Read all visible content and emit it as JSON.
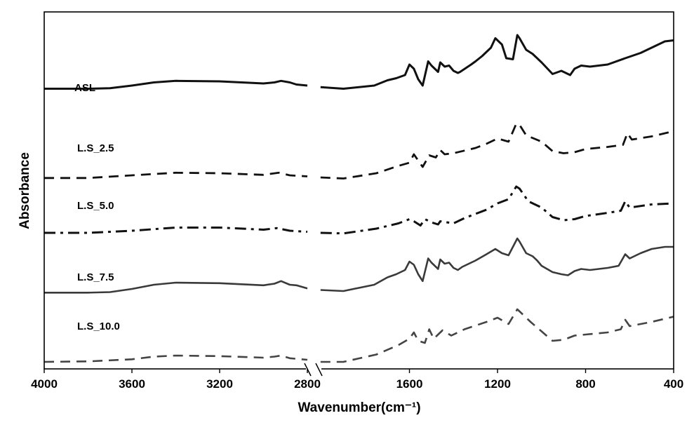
{
  "chart_data": {
    "type": "line",
    "title": "",
    "xlabel": "Wavenumber(cm⁻¹)",
    "ylabel": "Absorbance",
    "xlim": [
      4000,
      400
    ],
    "x_reversed": true,
    "axis_break_between": [
      2800,
      2000
    ],
    "xticks": [
      {
        "value": 4000,
        "label": "4000"
      },
      {
        "value": 3600,
        "label": "3600"
      },
      {
        "value": 3200,
        "label": "3200"
      },
      {
        "value": 2800,
        "label": "2800"
      },
      {
        "value": 1600,
        "label": "1600"
      },
      {
        "value": 1200,
        "label": "1200"
      },
      {
        "value": 800,
        "label": "800"
      },
      {
        "value": 400,
        "label": "400"
      }
    ],
    "grid": false,
    "y_units": "arbitrary",
    "series": [
      {
        "name": "ASL",
        "style": "solid",
        "width": 3,
        "color": "#111111",
        "segments": [
          [
            [
              4000,
              2.1
            ],
            [
              3800,
              2.1
            ],
            [
              3700,
              2.15
            ],
            [
              3600,
              2.4
            ],
            [
              3500,
              2.7
            ],
            [
              3400,
              2.85
            ],
            [
              3200,
              2.8
            ],
            [
              3000,
              2.6
            ],
            [
              2950,
              2.7
            ],
            [
              2920,
              2.85
            ],
            [
              2880,
              2.7
            ],
            [
              2850,
              2.5
            ],
            [
              2800,
              2.4
            ]
          ],
          [
            [
              2740,
              2.25
            ],
            [
              1900,
              2.1
            ],
            [
              1760,
              2.4
            ],
            [
              1700,
              2.9
            ],
            [
              1660,
              3.1
            ],
            [
              1620,
              3.4
            ],
            [
              1600,
              4.4
            ],
            [
              1580,
              4.0
            ],
            [
              1560,
              3.0
            ],
            [
              1540,
              2.4
            ],
            [
              1515,
              4.7
            ],
            [
              1500,
              4.3
            ],
            [
              1470,
              3.7
            ],
            [
              1460,
              4.6
            ],
            [
              1440,
              4.2
            ],
            [
              1420,
              4.3
            ],
            [
              1400,
              3.8
            ],
            [
              1380,
              3.6
            ],
            [
              1370,
              3.7
            ],
            [
              1320,
              4.4
            ],
            [
              1300,
              4.7
            ],
            [
              1270,
              5.2
            ],
            [
              1230,
              6.0
            ],
            [
              1210,
              6.9
            ],
            [
              1180,
              6.3
            ],
            [
              1160,
              5.0
            ],
            [
              1130,
              4.9
            ],
            [
              1110,
              7.2
            ],
            [
              1100,
              6.9
            ],
            [
              1070,
              5.8
            ],
            [
              1040,
              5.4
            ],
            [
              1030,
              5.2
            ],
            [
              1000,
              4.6
            ],
            [
              950,
              3.5
            ],
            [
              910,
              3.8
            ],
            [
              890,
              3.6
            ],
            [
              870,
              3.4
            ],
            [
              850,
              4.0
            ],
            [
              820,
              4.3
            ],
            [
              780,
              4.2
            ],
            [
              700,
              4.4
            ],
            [
              620,
              5.0
            ],
            [
              550,
              5.5
            ],
            [
              500,
              6.0
            ],
            [
              440,
              6.6
            ],
            [
              400,
              6.7
            ]
          ]
        ]
      },
      {
        "name": "L.S_2.5",
        "style": "dashed",
        "width": 2.8,
        "color": "#111111",
        "segments": [
          [
            [
              4000,
              0.15
            ],
            [
              3800,
              0.15
            ],
            [
              3600,
              0.4
            ],
            [
              3400,
              0.65
            ],
            [
              3200,
              0.6
            ],
            [
              3000,
              0.45
            ],
            [
              2930,
              0.65
            ],
            [
              2880,
              0.4
            ],
            [
              2800,
              0.3
            ]
          ],
          [
            [
              2740,
              0.2
            ],
            [
              1900,
              0.1
            ],
            [
              1750,
              0.6
            ],
            [
              1650,
              1.3
            ],
            [
              1600,
              1.6
            ],
            [
              1580,
              2.4
            ],
            [
              1560,
              1.8
            ],
            [
              1540,
              1.2
            ],
            [
              1510,
              2.3
            ],
            [
              1480,
              2.1
            ],
            [
              1460,
              2.8
            ],
            [
              1440,
              2.4
            ],
            [
              1400,
              2.5
            ],
            [
              1300,
              3.0
            ],
            [
              1250,
              3.4
            ],
            [
              1200,
              3.9
            ],
            [
              1150,
              3.6
            ],
            [
              1115,
              5.3
            ],
            [
              1100,
              5.2
            ],
            [
              1070,
              4.2
            ],
            [
              1000,
              3.6
            ],
            [
              950,
              2.7
            ],
            [
              900,
              2.5
            ],
            [
              850,
              2.6
            ],
            [
              800,
              2.9
            ],
            [
              700,
              3.1
            ],
            [
              630,
              3.3
            ],
            [
              610,
              4.4
            ],
            [
              590,
              3.8
            ],
            [
              500,
              4.1
            ],
            [
              400,
              4.6
            ]
          ]
        ]
      },
      {
        "name": "L.S_5.0",
        "style": "dashdot",
        "width": 3,
        "color": "#111111",
        "segments": [
          [
            [
              4000,
              0.8
            ],
            [
              3800,
              0.8
            ],
            [
              3600,
              1.0
            ],
            [
              3400,
              1.3
            ],
            [
              3200,
              1.3
            ],
            [
              3000,
              1.1
            ],
            [
              2940,
              1.25
            ],
            [
              2880,
              1.0
            ],
            [
              2800,
              0.9
            ]
          ],
          [
            [
              2740,
              0.8
            ],
            [
              1900,
              0.75
            ],
            [
              1750,
              1.2
            ],
            [
              1650,
              1.7
            ],
            [
              1600,
              2.1
            ],
            [
              1580,
              1.9
            ],
            [
              1550,
              1.5
            ],
            [
              1530,
              2.1
            ],
            [
              1500,
              1.8
            ],
            [
              1470,
              1.6
            ],
            [
              1460,
              1.9
            ],
            [
              1430,
              1.8
            ],
            [
              1400,
              1.7
            ],
            [
              1350,
              2.2
            ],
            [
              1250,
              3.0
            ],
            [
              1200,
              3.6
            ],
            [
              1150,
              4.0
            ],
            [
              1115,
              5.2
            ],
            [
              1100,
              5.0
            ],
            [
              1060,
              3.8
            ],
            [
              1000,
              3.2
            ],
            [
              950,
              2.3
            ],
            [
              900,
              2.0
            ],
            [
              850,
              2.1
            ],
            [
              800,
              2.4
            ],
            [
              700,
              2.7
            ],
            [
              640,
              2.9
            ],
            [
              620,
              3.8
            ],
            [
              600,
              3.2
            ],
            [
              500,
              3.5
            ],
            [
              400,
              3.6
            ]
          ]
        ]
      },
      {
        "name": "L.S_7.5",
        "style": "solid",
        "width": 2.6,
        "color": "#3a3a3a",
        "segments": [
          [
            [
              4000,
              0.85
            ],
            [
              3800,
              0.85
            ],
            [
              3700,
              0.9
            ],
            [
              3600,
              1.2
            ],
            [
              3500,
              1.6
            ],
            [
              3400,
              1.8
            ],
            [
              3200,
              1.75
            ],
            [
              3000,
              1.55
            ],
            [
              2950,
              1.7
            ],
            [
              2920,
              1.95
            ],
            [
              2880,
              1.6
            ],
            [
              2850,
              1.55
            ],
            [
              2800,
              1.25
            ]
          ],
          [
            [
              2740,
              1.1
            ],
            [
              1900,
              1.0
            ],
            [
              1760,
              1.6
            ],
            [
              1700,
              2.3
            ],
            [
              1660,
              2.6
            ],
            [
              1620,
              3.0
            ],
            [
              1600,
              3.8
            ],
            [
              1580,
              3.5
            ],
            [
              1560,
              2.6
            ],
            [
              1540,
              1.95
            ],
            [
              1515,
              4.1
            ],
            [
              1500,
              3.7
            ],
            [
              1470,
              3.1
            ],
            [
              1460,
              4.0
            ],
            [
              1440,
              3.6
            ],
            [
              1420,
              3.7
            ],
            [
              1400,
              3.2
            ],
            [
              1380,
              3.0
            ],
            [
              1360,
              3.3
            ],
            [
              1300,
              3.9
            ],
            [
              1250,
              4.5
            ],
            [
              1210,
              5.0
            ],
            [
              1180,
              4.6
            ],
            [
              1150,
              4.4
            ],
            [
              1110,
              6.0
            ],
            [
              1100,
              5.7
            ],
            [
              1070,
              4.6
            ],
            [
              1040,
              4.3
            ],
            [
              1020,
              3.9
            ],
            [
              1000,
              3.4
            ],
            [
              950,
              2.8
            ],
            [
              910,
              2.6
            ],
            [
              880,
              2.5
            ],
            [
              850,
              2.9
            ],
            [
              820,
              3.1
            ],
            [
              780,
              3.0
            ],
            [
              700,
              3.2
            ],
            [
              650,
              3.4
            ],
            [
              620,
              4.5
            ],
            [
              600,
              4.1
            ],
            [
              550,
              4.6
            ],
            [
              500,
              5.0
            ],
            [
              440,
              5.2
            ],
            [
              400,
              5.2
            ]
          ]
        ]
      },
      {
        "name": "L.S_10.0",
        "style": "dashed",
        "width": 2.6,
        "color": "#444444",
        "segments": [
          [
            [
              4000,
              0.0
            ],
            [
              3800,
              0.05
            ],
            [
              3600,
              0.25
            ],
            [
              3500,
              0.5
            ],
            [
              3400,
              0.6
            ],
            [
              3200,
              0.55
            ],
            [
              3000,
              0.4
            ],
            [
              2950,
              0.5
            ],
            [
              2920,
              0.6
            ],
            [
              2880,
              0.35
            ],
            [
              2800,
              0.2
            ]
          ],
          [
            [
              2740,
              0.0
            ],
            [
              1900,
              0.0
            ],
            [
              1750,
              0.7
            ],
            [
              1650,
              1.6
            ],
            [
              1600,
              2.2
            ],
            [
              1580,
              2.8
            ],
            [
              1560,
              2.0
            ],
            [
              1530,
              1.8
            ],
            [
              1510,
              3.1
            ],
            [
              1490,
              2.2
            ],
            [
              1470,
              2.6
            ],
            [
              1450,
              3.0
            ],
            [
              1410,
              2.5
            ],
            [
              1350,
              3.1
            ],
            [
              1250,
              3.8
            ],
            [
              1200,
              4.2
            ],
            [
              1150,
              3.6
            ],
            [
              1110,
              5.0
            ],
            [
              1100,
              4.8
            ],
            [
              1050,
              3.8
            ],
            [
              1000,
              2.9
            ],
            [
              950,
              2.0
            ],
            [
              900,
              2.1
            ],
            [
              850,
              2.5
            ],
            [
              800,
              2.6
            ],
            [
              700,
              2.8
            ],
            [
              640,
              3.1
            ],
            [
              620,
              4.0
            ],
            [
              600,
              3.4
            ],
            [
              500,
              3.8
            ],
            [
              400,
              4.3
            ]
          ]
        ]
      }
    ]
  }
}
